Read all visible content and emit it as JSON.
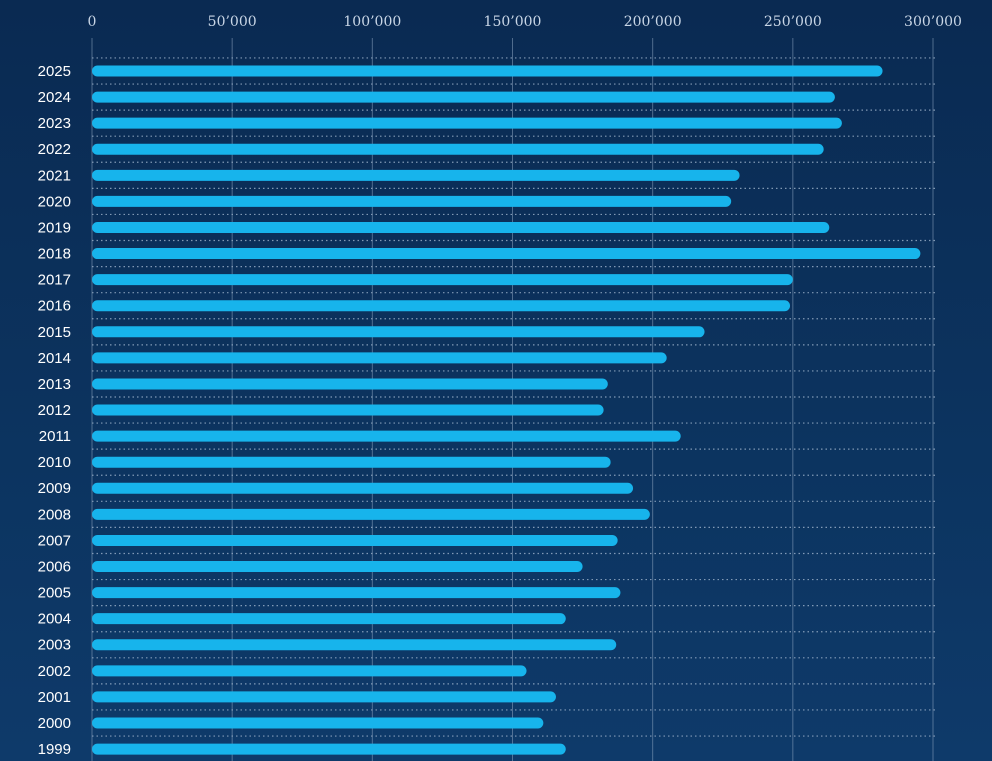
{
  "chart_data": {
    "type": "bar",
    "orientation": "horizontal",
    "color": "#17b4ec",
    "grid": true,
    "categories": [
      "2025",
      "2024",
      "2023",
      "2022",
      "2021",
      "2020",
      "2019",
      "2018",
      "2017",
      "2016",
      "2015",
      "2014",
      "2013",
      "2012",
      "2011",
      "2010",
      "2009",
      "2008",
      "2007",
      "2006",
      "2005",
      "2004",
      "2003",
      "2002",
      "2001",
      "2000",
      "1999"
    ],
    "values": [
      282000,
      265000,
      267500,
      261000,
      231000,
      228000,
      263000,
      295500,
      250000,
      249000,
      218500,
      205000,
      184000,
      182500,
      210000,
      185000,
      193000,
      199000,
      187500,
      175000,
      188500,
      169000,
      187000,
      155000,
      165500,
      161000,
      169000
    ],
    "xlim": [
      0,
      300000
    ],
    "xticks": [
      0,
      {
        "value": 50000,
        "label": "50’000"
      },
      {
        "value": 100000,
        "label": "100’000"
      },
      {
        "value": 150000,
        "label": "150’000"
      },
      {
        "value": 200000,
        "label": "200’000"
      },
      {
        "value": 250000,
        "label": "250’000"
      },
      {
        "value": 300000,
        "label": "300’000"
      }
    ]
  }
}
